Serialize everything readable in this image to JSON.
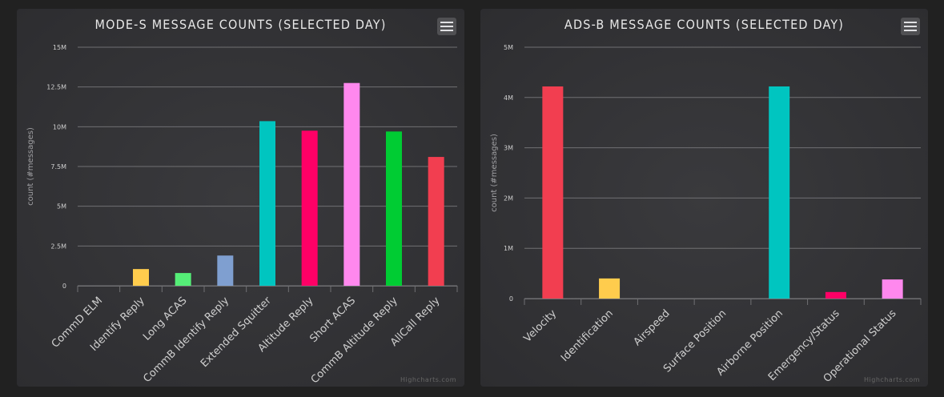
{
  "chart_data": [
    {
      "type": "bar",
      "title": "MODE-S MESSAGE COUNTS (SELECTED DAY)",
      "ylabel": "count (#messages)",
      "xlabel": "",
      "ylim": [
        0,
        15000000
      ],
      "yticks": [
        0,
        2500000,
        5000000,
        7500000,
        10000000,
        12500000,
        15000000
      ],
      "ytick_labels": [
        "0",
        "2.5M",
        "5M",
        "7.5M",
        "10M",
        "12.5M",
        "15M"
      ],
      "categories": [
        "CommD ELM",
        "Identify Reply",
        "Long ACAS",
        "CommB Identify Reply",
        "Extended Squitter",
        "Altitude Reply",
        "Short ACAS",
        "CommB Altitude Reply",
        "AllCall Reply"
      ],
      "values": [
        0,
        1050000,
        800000,
        1900000,
        10350000,
        9750000,
        12750000,
        9700000,
        8100000
      ],
      "colors": [
        "#2b908f",
        "#ffcc4d",
        "#55ee77",
        "#7f9fd0",
        "#00c5c0",
        "#ff0066",
        "#ff88ee",
        "#00cc33",
        "#f23e50"
      ],
      "grid": true,
      "legend": "none"
    },
    {
      "type": "bar",
      "title": "ADS-B MESSAGE COUNTS (SELECTED DAY)",
      "ylabel": "count (#messages)",
      "xlabel": "",
      "ylim": [
        0,
        5000000
      ],
      "yticks": [
        0,
        1000000,
        2000000,
        3000000,
        4000000,
        5000000
      ],
      "ytick_labels": [
        "0",
        "1M",
        "2M",
        "3M",
        "4M",
        "5M"
      ],
      "categories": [
        "Velocity",
        "Identification",
        "Airspeed",
        "Surface Position",
        "Airborne Position",
        "Emergency/Status",
        "Operational Status"
      ],
      "values": [
        4220000,
        400000,
        0,
        0,
        4220000,
        130000,
        380000
      ],
      "colors": [
        "#f23e50",
        "#ffcc4d",
        "#55ee77",
        "#7f9fd0",
        "#00c5c0",
        "#ff0066",
        "#ff88ee"
      ],
      "grid": true,
      "legend": "none"
    }
  ],
  "credits": "Highcharts.com",
  "colors": {
    "grid": "#707073",
    "tick_label": "#cfcfcf",
    "axis_title": "#a0a0a3",
    "title": "#e8e8e8"
  }
}
